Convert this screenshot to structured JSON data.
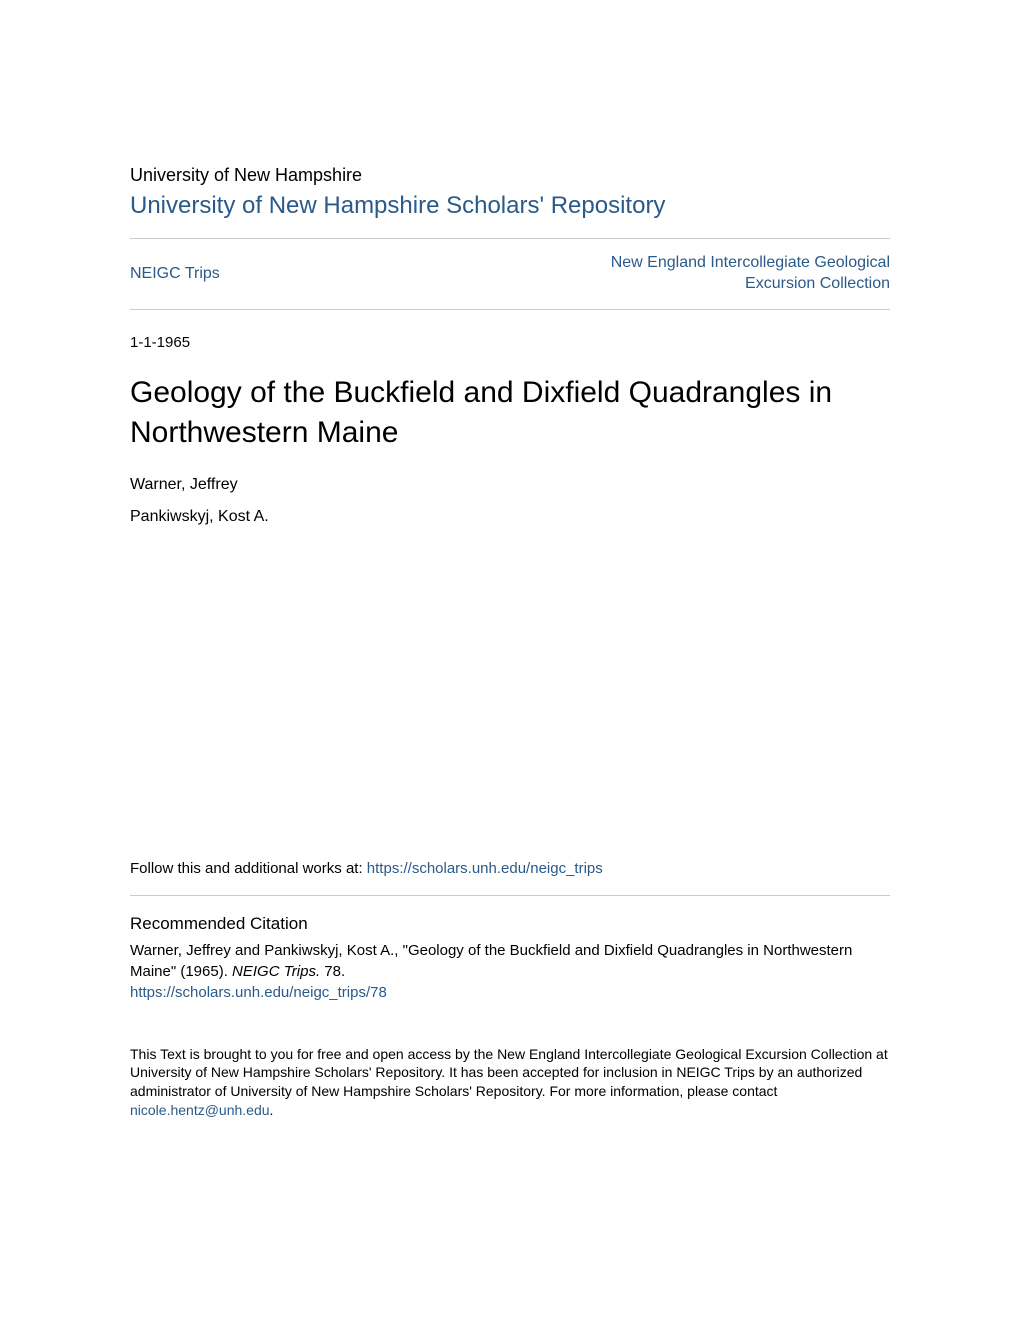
{
  "header": {
    "university": "University of New Hampshire",
    "repository_title": "University of New Hampshire Scholars' Repository"
  },
  "nav": {
    "left_label": "NEIGC Trips",
    "right_label_line1": "New England Intercollegiate Geological",
    "right_label_line2": "Excursion Collection"
  },
  "date": "1-1-1965",
  "paper": {
    "title": "Geology of the Buckfield and Dixfield Quadrangles in Northwestern Maine",
    "authors": [
      "Warner, Jeffrey",
      "Pankiwskyj, Kost A."
    ]
  },
  "follow": {
    "prefix": "Follow this and additional works at: ",
    "url": "https://scholars.unh.edu/neigc_trips"
  },
  "citation": {
    "heading": "Recommended Citation",
    "text_part1": "Warner, Jeffrey and Pankiwskyj, Kost A., \"Geology of the Buckfield and Dixfield Quadrangles in Northwestern Maine\" (1965). ",
    "text_italic": "NEIGC Trips.",
    "text_part2": " 78.",
    "link": "https://scholars.unh.edu/neigc_trips/78"
  },
  "footer": {
    "text_part1": "This Text is brought to you for free and open access by the New England Intercollegiate Geological Excursion Collection at University of New Hampshire Scholars' Repository. It has been accepted for inclusion in NEIGC Trips by an authorized administrator of University of New Hampshire Scholars' Repository. For more information, please contact ",
    "email": "nicole.hentz@unh.edu",
    "text_part2": "."
  },
  "colors": {
    "link_color": "#2a5a8a",
    "text_color": "#000000",
    "divider_color": "#cccccc",
    "background_color": "#ffffff"
  },
  "typography": {
    "title_fontsize": 30,
    "repository_fontsize": 24,
    "body_fontsize": 15,
    "nav_fontsize": 16,
    "footer_fontsize": 14
  }
}
